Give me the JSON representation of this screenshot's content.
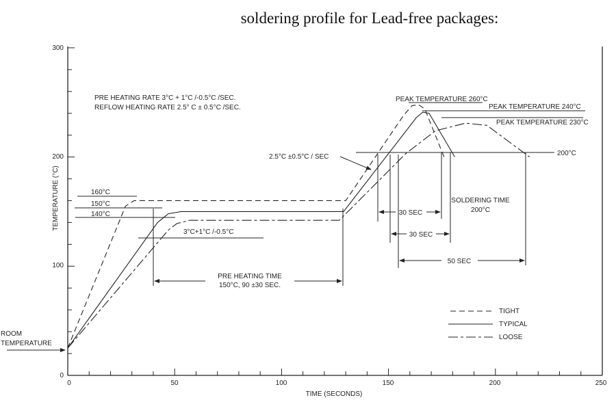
{
  "title": "soldering profile for Lead-free packages:",
  "chart_data": {
    "type": "line",
    "title": "soldering profile for Lead-free packages:",
    "xlabel": "TIME (SECONDS)",
    "ylabel": "TEMPERATURE (°C)",
    "xlim": [
      0,
      250
    ],
    "ylim": [
      0,
      300
    ],
    "xticks": [
      "0",
      "50",
      "100",
      "150",
      "200",
      "250"
    ],
    "yticks": [
      "0",
      "100",
      "200",
      "300"
    ],
    "grid": false,
    "legend_position": "bottom-right",
    "series": [
      {
        "name": "TIGHT",
        "style": "dashed",
        "points": [
          [
            0,
            25
          ],
          [
            27,
            155
          ],
          [
            31,
            160
          ],
          [
            130,
            160
          ],
          [
            157,
            238
          ],
          [
            161,
            247
          ],
          [
            164,
            248
          ],
          [
            167,
            244
          ],
          [
            176,
            200
          ]
        ]
      },
      {
        "name": "TYPICAL",
        "style": "solid",
        "points": [
          [
            0,
            25
          ],
          [
            42,
            140
          ],
          [
            47,
            148
          ],
          [
            53,
            150
          ],
          [
            129,
            150
          ],
          [
            163,
            236
          ],
          [
            166,
            241
          ],
          [
            169,
            240
          ],
          [
            181,
            200
          ]
        ]
      },
      {
        "name": "LOOSE",
        "style": "dash-dot",
        "points": [
          [
            0,
            25
          ],
          [
            47,
            133
          ],
          [
            51,
            139
          ],
          [
            57,
            142
          ],
          [
            127,
            142
          ],
          [
            158,
            203
          ],
          [
            172,
            224
          ],
          [
            186,
            231
          ],
          [
            196,
            229
          ],
          [
            216,
            200
          ]
        ]
      }
    ],
    "annotations": {
      "rates_line1": "PRE HEATING RATE 3°C + 1°C /-0.5°C /SEC.",
      "rates_line2": "REFLOW HEATING RATE 2.5° C ± 0.5°C /SEC.",
      "peak_260": "PEAK TEMPERATURE 260°C",
      "peak_240": "PEAK TEMPERATURE 240°C",
      "peak_230": "PEAK TEMPERATURE 230°C",
      "level_200": "200°C",
      "reflow_rate": "2.5°C  ±0.5°C / SEC",
      "level_160": "160°C",
      "level_150": "150°C",
      "level_140": "140°C",
      "preheat_rate": "3°C+1°C /-0.5°C",
      "preheat_time_1": "PRE HEATING TIME",
      "preheat_time_2": "150°C, 90 ±30 SEC.",
      "sec30_a": "30 SEC",
      "sec30_b": "30 SEC",
      "sec50": "50 SEC",
      "soldering_time_1": "SOLDERING TIME",
      "soldering_time_2": "200°C",
      "room_1": "ROOM",
      "room_2": "TEMPERATURE"
    },
    "legend": [
      "TIGHT",
      "TYPICAL",
      "LOOSE"
    ]
  }
}
